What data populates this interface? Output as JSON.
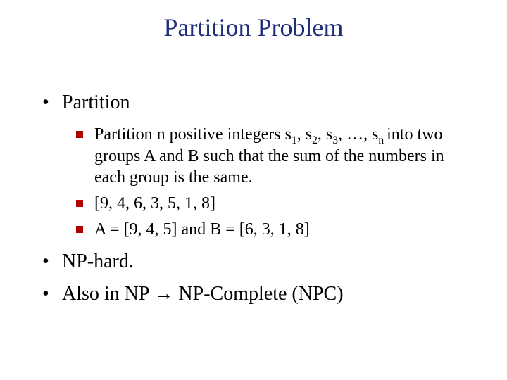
{
  "title": {
    "text": "Partition Problem",
    "color": "#1f2e79"
  },
  "bullets": {
    "b1": "Partition",
    "sub": {
      "s1_pre": "Partition n positive integers s",
      "s1_sub1": "1",
      "s1_mid1": ", s",
      "s1_sub2": "2",
      "s1_mid2": ", s",
      "s1_sub3": "3",
      "s1_mid3": ", …, s",
      "s1_sub4": "n ",
      "s1_post": "into two groups A and B such that the sum of the numbers in each group is the same.",
      "s2": "[9, 4, 6, 3, 5, 1, 8]",
      "s3": "A = [9, 4, 5] and B = [6, 3, 1, 8]"
    },
    "b2": "NP-hard.",
    "b3": "Also in NP → NP-Complete (NPC)"
  }
}
